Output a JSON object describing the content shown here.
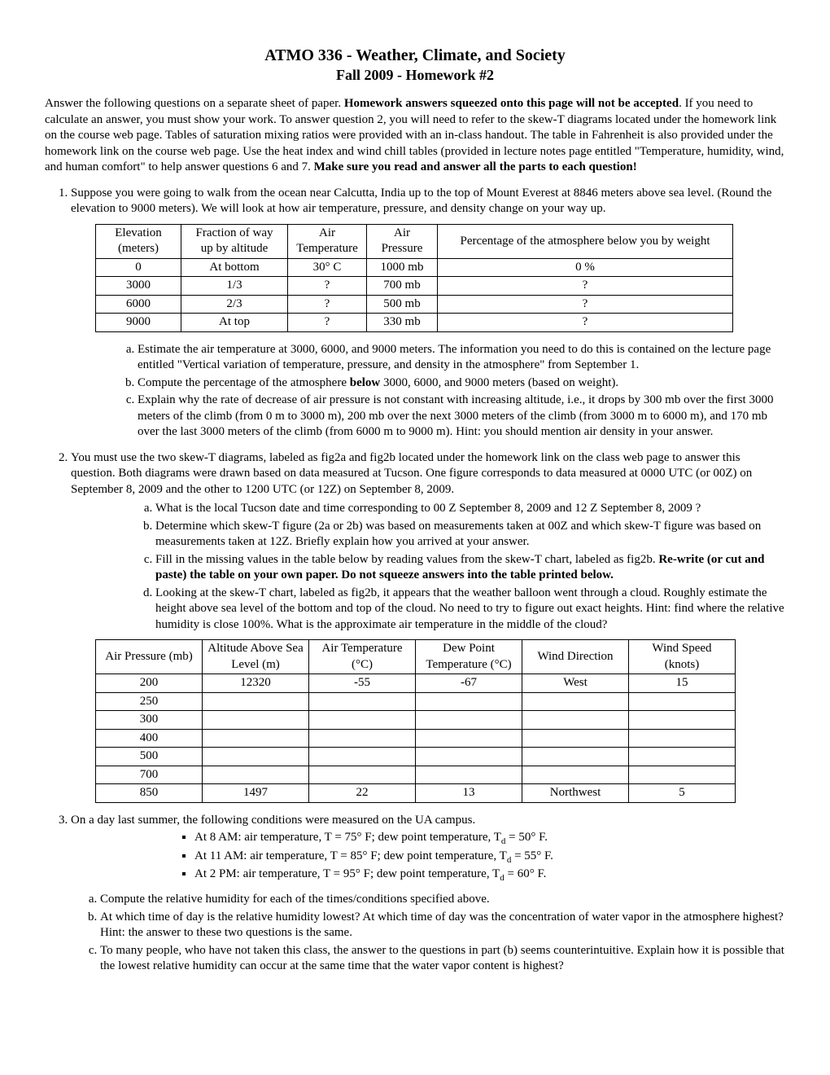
{
  "title": "ATMO 336 - Weather, Climate, and Society",
  "subtitle": "Fall 2009 - Homework #2",
  "intro_parts": {
    "a": "Answer the following questions on a separate sheet of paper.  ",
    "b": "Homework answers squeezed onto this page will not be accepted",
    "c": ".  If you need to calculate an answer, you must show your work.  To answer question 2, you will need to refer to the skew-T diagrams located under the homework link on the course web page. Tables of saturation mixing ratios were provided with an in-class handout.  The table in Fahrenheit is also provided under the homework link on the course web page.  Use the heat index and wind chill tables (provided in lecture notes page entitled \"Temperature, humidity, wind, and human comfort\" to help answer questions 6 and 7.  ",
    "d": "Make sure you read and answer all the parts to each question!"
  },
  "q1_text": "Suppose you were going to walk from the ocean near Calcutta, India up to the top of Mount Everest at 8846 meters above sea level.  (Round the elevation to 9000 meters).  We will look at how air temperature, pressure, and density change on your way up.",
  "t1": {
    "headers": [
      [
        "Elevation (meters)",
        "Fraction of way up by altitude",
        "Air Temperature",
        "Air Pressure",
        "Percentage of the atmosphere below you by weight"
      ]
    ],
    "rows": [
      [
        "0",
        "At bottom",
        "30° C",
        "1000 mb",
        "0 %"
      ],
      [
        "3000",
        "1/3",
        "?",
        "700 mb",
        "?"
      ],
      [
        "6000",
        "2/3",
        "?",
        "500 mb",
        "?"
      ],
      [
        "9000",
        "At top",
        "?",
        "330 mb",
        "?"
      ]
    ]
  },
  "q1_sub": {
    "a": "Estimate the air temperature at 3000, 6000, and 9000 meters.  The information you need to do this is contained on the lecture page entitled \"Vertical variation of temperature, pressure, and density in the atmosphere\" from September 1.",
    "b_pre": "Compute the percentage of the atmosphere ",
    "b_bold": "below",
    "b_post": " 3000, 6000, and 9000 meters (based on weight).",
    "c": "Explain why the rate of decrease of air pressure is not constant with increasing altitude, i.e., it drops by 300 mb over the first 3000 meters of the climb (from 0 m to 3000 m), 200 mb over the next 3000 meters of the climb (from 3000 m to 6000 m), and 170 mb over the last 3000 meters of the climb (from 6000 m to 9000 m).  Hint: you should mention air density in your answer."
  },
  "q2_text": "You must use the two skew-T diagrams, labeled as fig2a and fig2b located under the homework link on the class web page to answer this question.  Both diagrams were drawn based on data measured at Tucson.  One figure corresponds to data measured at 0000 UTC (or 00Z) on September 8, 2009 and the other to 1200 UTC (or 12Z) on September 8, 2009.",
  "q2_sub": {
    "a": "What is the local Tucson date and time corresponding to 00 Z September 8, 2009 and 12 Z September 8, 2009 ?",
    "b": "Determine which skew-T figure (2a or 2b) was based on measurements taken at 00Z and which skew-T figure was based on measurements taken at 12Z.  Briefly explain how you arrived at your answer.",
    "c_pre": "Fill in the missing values in the table below by reading values from the skew-T chart, labeled as fig2b.  ",
    "c_bold": "Re-write (or cut and paste) the table on your own paper.  Do not squeeze answers into the table printed below.",
    "d": "Looking at the skew-T chart, labeled as fig2b, it appears that the weather balloon went through a cloud.  Roughly estimate the height above sea level of the bottom and top of the cloud.  No need to try to figure out exact heights.  Hint: find where the relative humidity is close 100%.  What is the approximate air temperature in the middle of the cloud?"
  },
  "t2": {
    "headers": [
      "Air Pressure (mb)",
      "Altitude Above Sea Level (m)",
      "Air Temperature (°C)",
      "Dew Point Temperature (°C)",
      "Wind Direction",
      "Wind Speed (knots)"
    ],
    "rows": [
      [
        "200",
        "12320",
        "-55",
        "-67",
        "West",
        "15"
      ],
      [
        "250",
        "",
        "",
        "",
        "",
        ""
      ],
      [
        "300",
        "",
        "",
        "",
        "",
        ""
      ],
      [
        "400",
        "",
        "",
        "",
        "",
        ""
      ],
      [
        "500",
        "",
        "",
        "",
        "",
        ""
      ],
      [
        "700",
        "",
        "",
        "",
        "",
        ""
      ],
      [
        "850",
        "1497",
        "22",
        "13",
        "Northwest",
        "5"
      ]
    ]
  },
  "q3_text": "On a day last summer, the following conditions were measured on the UA campus.",
  "q3_bullets": {
    "b1_pre": "At 8 AM:  air temperature, T = 75° F; dew point temperature, T",
    "b1_post": " = 50° F.",
    "b2_pre": "At 11 AM:  air temperature, T = 85° F; dew point temperature, T",
    "b2_post": " = 55° F.",
    "b3_pre": "At 2 PM: air temperature, T = 95° F; dew point temperature, T",
    "b3_post": " = 60° F.",
    "sub": "d"
  },
  "q3_sub": {
    "a": "Compute the relative humidity for each of the times/conditions specified above.",
    "b": "At which time of day is the relative humidity lowest?  At which time of day was the concentration of water vapor in the atmosphere highest?  Hint: the answer to these two questions is the same.",
    "c": "To many people, who have not taken this class, the answer to the questions in part (b) seems counterintuitive.  Explain how it is possible that the lowest relative humidity can occur at the same time that the water vapor content is highest?"
  }
}
